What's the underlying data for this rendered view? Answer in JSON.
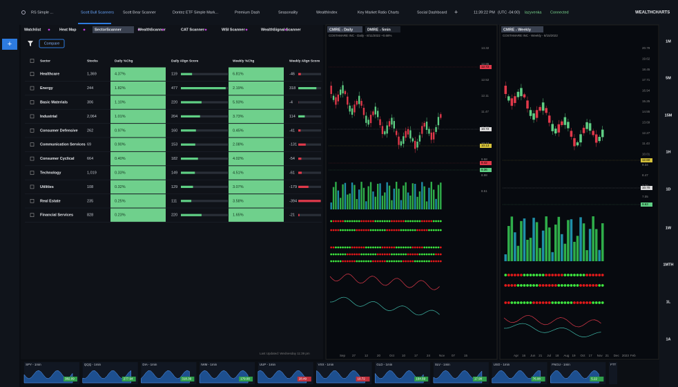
{
  "top_tabs": [
    "RS Simple ...",
    "Scott Bull Scanners",
    "Scott Bear Scanner",
    "Dontez ETF Simple Mark...",
    "Premium Dash",
    "Seasonality",
    "WealthIndex",
    "Key Market Ratio Charts",
    "Social Dashboard"
  ],
  "status": {
    "time": "11:39:22 PM",
    "timezone": "(UTC -04:00)",
    "user": "lazyvenka",
    "connection": "Connected",
    "brand": "WEALTHCHARTS"
  },
  "sub_tabs": [
    "Watchlist",
    "Heat Map",
    "SectorScanner",
    "WealthScanner",
    "CAT Scanner",
    "WSI Scanner",
    "WealthSignal Scanner"
  ],
  "compare_button": "Compare",
  "table": {
    "headers": [
      "Sector",
      "Stocks",
      "Daily %Chg",
      "Daily Align Score",
      "Weekly %Chg",
      "Weekly Align Score"
    ],
    "rows": [
      [
        "Healthcare",
        "1,369",
        "4.37%",
        119,
        "6.81%",
        -46
      ],
      [
        "Energy",
        "244",
        "1.82%",
        477,
        "2.19%",
        318
      ],
      [
        "Basic Materials",
        "306",
        "1.10%",
        220,
        "5.93%",
        -4
      ],
      [
        "Industrial",
        "2,064",
        "1.01%",
        204,
        "3.73%",
        114
      ],
      [
        "Consumer Defensive",
        "262",
        "0.97%",
        160,
        "0.45%",
        -41
      ],
      [
        "Communication Services",
        "69",
        "0.90%",
        153,
        "2.08%",
        -131
      ],
      [
        "Consumer Cyclical",
        "664",
        "0.40%",
        182,
        "4.02%",
        -54
      ],
      [
        "Technology",
        "1,019",
        "0.33%",
        149,
        "4.51%",
        -61
      ],
      [
        "Utilities",
        "108",
        "0.32%",
        129,
        "3.07%",
        -179
      ],
      [
        "Real Estate",
        "235",
        "0.25%",
        111,
        "3.58%",
        -394
      ],
      [
        "Financial Services",
        "828",
        "0.23%",
        220,
        "1.65%",
        -21
      ]
    ]
  },
  "last_updated": "Last Updated: Wednesday 11:39 pm",
  "charts": [
    {
      "tabs": [
        "CMRE - Daily",
        "DMRE - 5min"
      ],
      "title": "COSTAMARE INC - Daily - 8/11/2022 +0.68%",
      "price_labels": [
        "13.32",
        "12.95",
        "12.52",
        "12.11",
        "11.47",
        "11.03",
        "10.12",
        "9.58",
        "8.98",
        "8.51"
      ],
      "marker_labels": [
        "12.72",
        "10.72",
        "10.13",
        "9.42",
        "9.36"
      ],
      "x_labels": [
        "Sep",
        "27",
        "12",
        "20",
        "Oct",
        "10",
        "17",
        "24",
        "Nov",
        "07",
        "15"
      ]
    },
    {
      "tabs": [
        "CMRE - Weekly"
      ],
      "title": "COSTAMARE INC - Weekly - 8/15/2022",
      "price_labels": [
        "20.79",
        "19.62",
        "18.45",
        "17.71",
        "16.94",
        "15.25",
        "14.55",
        "13.69",
        "12.27",
        "11.43",
        "10.01",
        "9.34",
        "8.47",
        "7.70",
        "7.05"
      ],
      "marker_labels": [
        "12.60",
        "10.70",
        "9.63"
      ],
      "x_labels": [
        "Apr",
        "16",
        "Jun",
        "21",
        "Jul",
        "18",
        "Aug",
        "19",
        "Oct",
        "17",
        "Nov",
        "21",
        "Dec",
        "2023",
        "Feb"
      ]
    }
  ],
  "timeframes": [
    "1M",
    "5M",
    "15M",
    "1H",
    "1D",
    "1W",
    "1MTH",
    "1L",
    "1A"
  ],
  "tickers": [
    {
      "name": "SPY - 1min",
      "price": "382.09"
    },
    {
      "name": "QQQ - 1min",
      "price": "277.94"
    },
    {
      "name": "DIA - 1min",
      "price": "318.39"
    },
    {
      "name": "IWM - 1min",
      "price": "179.00"
    },
    {
      "name": "UUP - 1min",
      "price": "28.49"
    },
    {
      "name": "VXX - 1min",
      "price": "10.72"
    },
    {
      "name": "GLD - 1min",
      "price": "164.59"
    },
    {
      "name": "SLV - 1min",
      "price": "17.98"
    },
    {
      "name": "USO - 1min",
      "price": "76.08"
    },
    {
      "name": "FNGU - 1min",
      "price": "5.22"
    },
    {
      "name": "FTT"
    }
  ]
}
